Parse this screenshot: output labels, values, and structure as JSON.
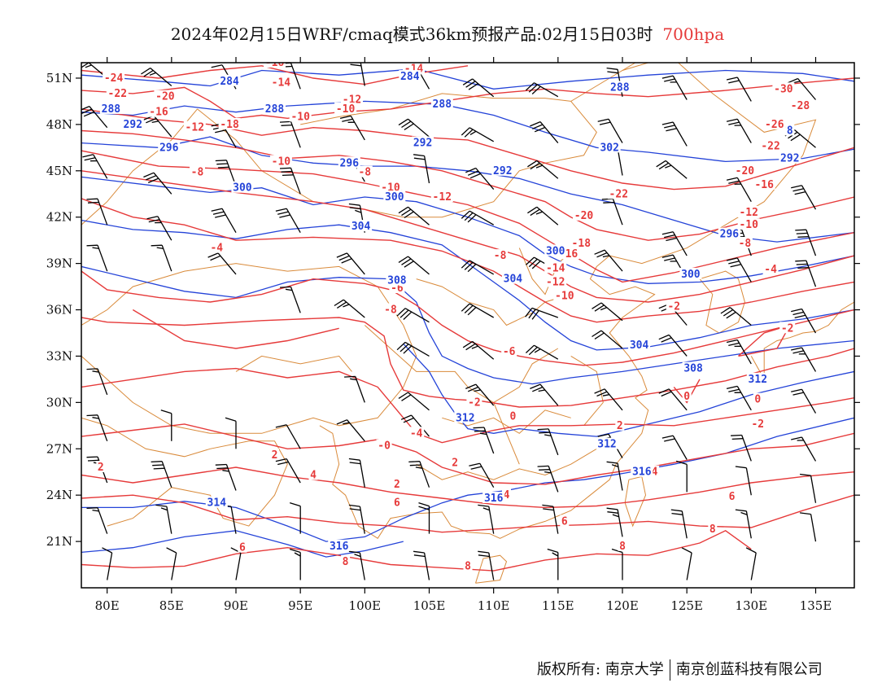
{
  "title": {
    "main": "2024年02月15日WRF/cmaq模式36km预报产品:02月15日03时",
    "level": "700hpa"
  },
  "colors": {
    "temperature": "#e63a3a",
    "geopotential": "#2443d8",
    "borders": "#d98a3a",
    "wind": "#000000",
    "level_text": "#e63a3a"
  },
  "axes": {
    "x_ticks": [
      "80E",
      "85E",
      "90E",
      "95E",
      "100E",
      "105E",
      "110E",
      "115E",
      "120E",
      "125E",
      "130E",
      "135E"
    ],
    "y_ticks": [
      "51N",
      "48N",
      "45N",
      "42N",
      "39N",
      "36N",
      "33N",
      "30N",
      "27N",
      "24N",
      "21N"
    ],
    "lon_range": [
      78,
      138
    ],
    "lat_range": [
      18,
      52
    ]
  },
  "contours": {
    "temperature_labels": [
      {
        "text": "-24",
        "lon": 80.5,
        "lat": 51.0
      },
      {
        "text": "-22",
        "lon": 80.8,
        "lat": 50.0
      },
      {
        "text": "-20",
        "lon": 84.5,
        "lat": 49.8
      },
      {
        "text": "-16",
        "lon": 84.0,
        "lat": 48.8
      },
      {
        "text": "-12",
        "lon": 86.8,
        "lat": 47.8
      },
      {
        "text": "-18",
        "lon": 89.5,
        "lat": 48.0
      },
      {
        "text": "-16",
        "lon": 93.0,
        "lat": 52.0
      },
      {
        "text": "-14",
        "lon": 93.5,
        "lat": 50.7
      },
      {
        "text": "-12",
        "lon": 99.0,
        "lat": 49.6
      },
      {
        "text": "-10",
        "lon": 98.5,
        "lat": 49.0
      },
      {
        "text": "-10",
        "lon": 95.0,
        "lat": 48.5
      },
      {
        "text": "-14",
        "lon": 103.8,
        "lat": 51.6
      },
      {
        "text": "-10",
        "lon": 93.5,
        "lat": 45.6
      },
      {
        "text": "-8",
        "lon": 87.0,
        "lat": 44.9
      },
      {
        "text": "-8",
        "lon": 100.0,
        "lat": 44.9
      },
      {
        "text": "-10",
        "lon": 102.0,
        "lat": 43.9
      },
      {
        "text": "-12",
        "lon": 106.0,
        "lat": 43.3
      },
      {
        "text": "-30",
        "lon": 132.5,
        "lat": 50.3
      },
      {
        "text": "-28",
        "lon": 133.8,
        "lat": 49.2
      },
      {
        "text": "-26",
        "lon": 131.8,
        "lat": 48.0
      },
      {
        "text": "-22",
        "lon": 131.5,
        "lat": 46.6
      },
      {
        "text": "-20",
        "lon": 129.5,
        "lat": 45.0
      },
      {
        "text": "-16",
        "lon": 131.0,
        "lat": 44.1
      },
      {
        "text": "-12",
        "lon": 129.8,
        "lat": 42.3
      },
      {
        "text": "-10",
        "lon": 129.8,
        "lat": 41.5
      },
      {
        "text": "-8",
        "lon": 129.5,
        "lat": 40.3
      },
      {
        "text": "-22",
        "lon": 119.7,
        "lat": 43.5
      },
      {
        "text": "-20",
        "lon": 117.0,
        "lat": 42.1
      },
      {
        "text": "-18",
        "lon": 116.8,
        "lat": 40.3
      },
      {
        "text": "-16",
        "lon": 115.8,
        "lat": 39.6
      },
      {
        "text": "-14",
        "lon": 114.8,
        "lat": 38.7
      },
      {
        "text": "-12",
        "lon": 114.8,
        "lat": 37.8
      },
      {
        "text": "-10",
        "lon": 115.5,
        "lat": 36.9
      },
      {
        "text": "-8",
        "lon": 110.5,
        "lat": 39.5
      },
      {
        "text": "-4",
        "lon": 88.5,
        "lat": 40.0
      },
      {
        "text": "-6",
        "lon": 102.5,
        "lat": 37.4
      },
      {
        "text": "-8",
        "lon": 102.0,
        "lat": 36.0
      },
      {
        "text": "-6",
        "lon": 111.2,
        "lat": 33.3
      },
      {
        "text": "-4",
        "lon": 131.5,
        "lat": 38.6
      },
      {
        "text": "-2",
        "lon": 124.0,
        "lat": 36.2
      },
      {
        "text": "-2",
        "lon": 132.8,
        "lat": 34.8
      },
      {
        "text": "-2",
        "lon": 108.5,
        "lat": 30.0
      },
      {
        "text": "0",
        "lon": 111.5,
        "lat": 29.1
      },
      {
        "text": "0",
        "lon": 125.0,
        "lat": 30.4
      },
      {
        "text": "0",
        "lon": 130.5,
        "lat": 30.2
      },
      {
        "text": "-2",
        "lon": 130.5,
        "lat": 28.6
      },
      {
        "text": "2",
        "lon": 119.8,
        "lat": 28.5
      },
      {
        "text": "-4",
        "lon": 104.0,
        "lat": 28.0
      },
      {
        "text": "-0",
        "lon": 101.5,
        "lat": 27.2
      },
      {
        "text": "2",
        "lon": 79.5,
        "lat": 25.8
      },
      {
        "text": "2",
        "lon": 93.0,
        "lat": 26.6
      },
      {
        "text": "4",
        "lon": 96.0,
        "lat": 25.3
      },
      {
        "text": "2",
        "lon": 102.5,
        "lat": 24.7
      },
      {
        "text": "2",
        "lon": 107.0,
        "lat": 26.1
      },
      {
        "text": "4",
        "lon": 111.0,
        "lat": 24.0
      },
      {
        "text": "4",
        "lon": 122.5,
        "lat": 25.5
      },
      {
        "text": "6",
        "lon": 102.5,
        "lat": 23.5
      },
      {
        "text": "6",
        "lon": 115.5,
        "lat": 22.3
      },
      {
        "text": "6",
        "lon": 128.5,
        "lat": 23.9
      },
      {
        "text": "6",
        "lon": 90.5,
        "lat": 20.6
      },
      {
        "text": "8",
        "lon": 98.5,
        "lat": 19.7
      },
      {
        "text": "8",
        "lon": 120.0,
        "lat": 20.7
      },
      {
        "text": "8",
        "lon": 127.0,
        "lat": 21.8
      },
      {
        "text": "8",
        "lon": 108.0,
        "lat": 19.4
      }
    ],
    "geopotential_labels": [
      {
        "text": "284",
        "lon": 89.5,
        "lat": 50.8
      },
      {
        "text": "284",
        "lon": 103.5,
        "lat": 51.1
      },
      {
        "text": "288",
        "lon": 80.3,
        "lat": 49.0
      },
      {
        "text": "288",
        "lon": 93.0,
        "lat": 49.0
      },
      {
        "text": "288",
        "lon": 106.0,
        "lat": 49.3
      },
      {
        "text": "292",
        "lon": 82.0,
        "lat": 48.0
      },
      {
        "text": "296",
        "lon": 84.8,
        "lat": 46.5
      },
      {
        "text": "296",
        "lon": 98.8,
        "lat": 45.5
      },
      {
        "text": "292",
        "lon": 104.5,
        "lat": 46.8
      },
      {
        "text": "292",
        "lon": 110.7,
        "lat": 45.0
      },
      {
        "text": "300",
        "lon": 90.5,
        "lat": 43.9
      },
      {
        "text": "300",
        "lon": 102.3,
        "lat": 43.3
      },
      {
        "text": "304",
        "lon": 99.7,
        "lat": 41.4
      },
      {
        "text": "308",
        "lon": 102.5,
        "lat": 37.9
      },
      {
        "text": "304",
        "lon": 111.5,
        "lat": 38.0
      },
      {
        "text": "300",
        "lon": 114.8,
        "lat": 39.8
      },
      {
        "text": "288",
        "lon": 119.8,
        "lat": 50.4
      },
      {
        "text": "302",
        "lon": 119.0,
        "lat": 46.5
      },
      {
        "text": "292",
        "lon": 133.0,
        "lat": 45.8
      },
      {
        "text": "296",
        "lon": 128.3,
        "lat": 40.9
      },
      {
        "text": "300",
        "lon": 125.3,
        "lat": 38.3
      },
      {
        "text": "304",
        "lon": 121.3,
        "lat": 33.7
      },
      {
        "text": "308",
        "lon": 125.5,
        "lat": 32.2
      },
      {
        "text": "312",
        "lon": 130.5,
        "lat": 31.5
      },
      {
        "text": "312",
        "lon": 107.8,
        "lat": 29.0
      },
      {
        "text": "312",
        "lon": 118.8,
        "lat": 27.3
      },
      {
        "text": "316",
        "lon": 121.5,
        "lat": 25.5
      },
      {
        "text": "316",
        "lon": 110.0,
        "lat": 23.8
      },
      {
        "text": "314",
        "lon": 88.5,
        "lat": 23.5
      },
      {
        "text": "316",
        "lon": 98.0,
        "lat": 20.7
      },
      {
        "text": "8",
        "lon": 133.0,
        "lat": 47.6
      }
    ]
  },
  "footer": {
    "copyright": "版权所有: 南京大学",
    "company": "南京创蓝科技有限公司"
  }
}
